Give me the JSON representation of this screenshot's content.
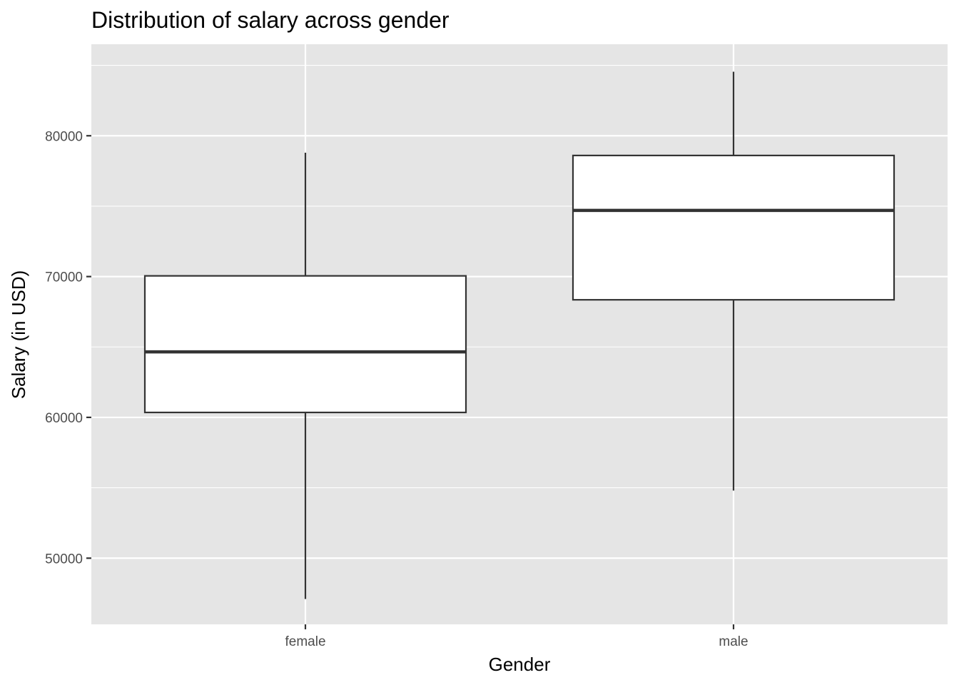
{
  "chart_data": {
    "type": "boxplot",
    "title": "Distribution of salary across gender",
    "xlabel": "Gender",
    "ylabel": "Salary (in USD)",
    "categories": [
      "female",
      "male"
    ],
    "boxes": [
      {
        "category": "female",
        "min": 47100,
        "q1": 60350,
        "median": 64650,
        "q3": 70050,
        "max": 78800
      },
      {
        "category": "male",
        "min": 54800,
        "q1": 68350,
        "median": 74700,
        "q3": 78600,
        "max": 84550
      }
    ],
    "ylim": [
      45300,
      86500
    ],
    "yticks": [
      50000,
      60000,
      70000,
      80000
    ],
    "ytick_labels": [
      "50000",
      "60000",
      "70000",
      "80000"
    ],
    "yminor": [
      55000,
      65000,
      75000,
      85000
    ],
    "grid": true,
    "colors": {
      "panel": "#e5e5e5",
      "grid": "#ffffff",
      "box_fill": "#ffffff",
      "box_line": "#333333"
    }
  }
}
